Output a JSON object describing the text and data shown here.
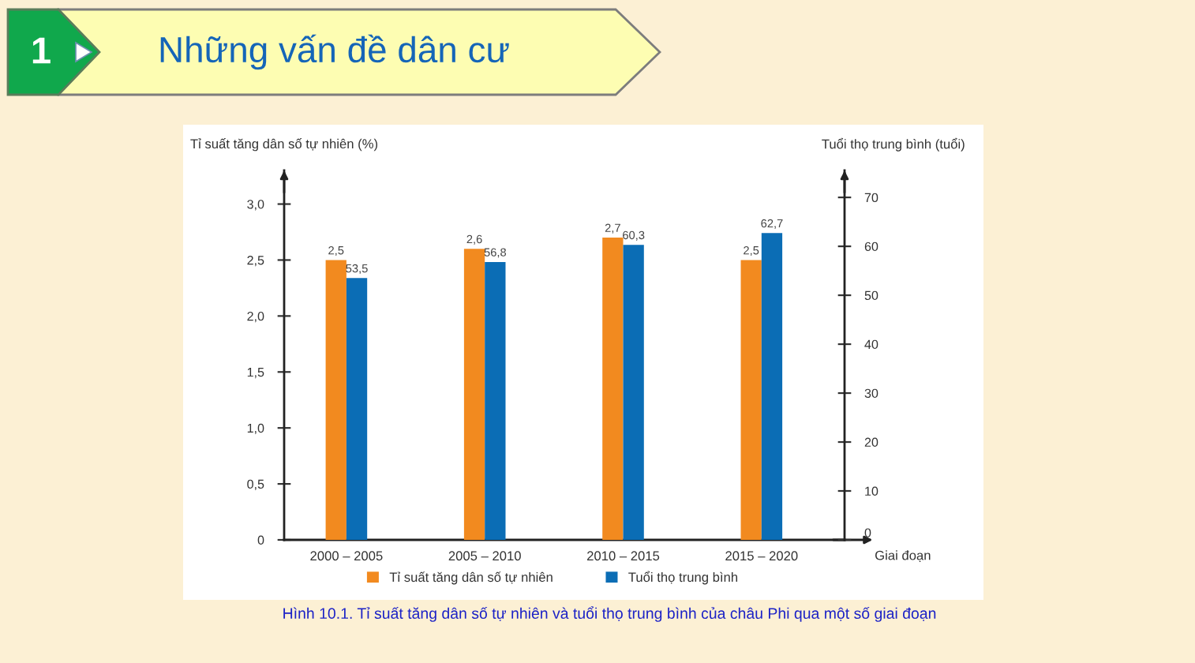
{
  "chart_data": {
    "type": "bar",
    "title": "Những vấn đề dân cư",
    "categories": [
      "2000 – 2005",
      "2005 – 2010",
      "2010 – 2015",
      "2015 – 2020"
    ],
    "xlabel": "Giai đoạn",
    "ylabel": "Tỉ suất tăng dân số tự nhiên (%)",
    "y2label": "Tuổi thọ trung bình (tuổi)",
    "series": [
      {
        "name": "Tỉ suất tăng dân số tự nhiên",
        "color": "#f28a1f",
        "values": [
          2.5,
          2.6,
          2.7,
          2.5
        ],
        "value_labels": [
          "2,5",
          "2,6",
          "2,7",
          "2,5"
        ]
      },
      {
        "name": "Tuổi thọ trung bình",
        "color": "#0b6db5",
        "axis": "y2",
        "values": [
          53.5,
          56.8,
          60.3,
          62.7
        ],
        "value_labels": [
          "53,5",
          "56,8",
          "60,3",
          "62,7"
        ]
      }
    ],
    "ylim": [
      0,
      3.3
    ],
    "yticks": [
      0,
      {
        "value": 0.5,
        "label": "0,5"
      },
      {
        "value": 1.0,
        "label": "1,0"
      },
      {
        "value": 1.5,
        "label": "1,5"
      },
      {
        "value": 2.0,
        "label": "2,0"
      },
      {
        "value": 2.5,
        "label": "2,5"
      },
      {
        "value": 3.0,
        "label": "3,0"
      }
    ],
    "y2lim": [
      0,
      75.5
    ],
    "y2ticks": [
      0,
      10,
      20,
      30,
      40,
      50,
      60,
      70
    ],
    "legend": "bottom",
    "annotations": [
      "1",
      "Hình 10.1. Tỉ suất tăng dân số tự nhiên và tuổi thọ trung bình của châu Phi qua một số giai đoạn"
    ]
  }
}
